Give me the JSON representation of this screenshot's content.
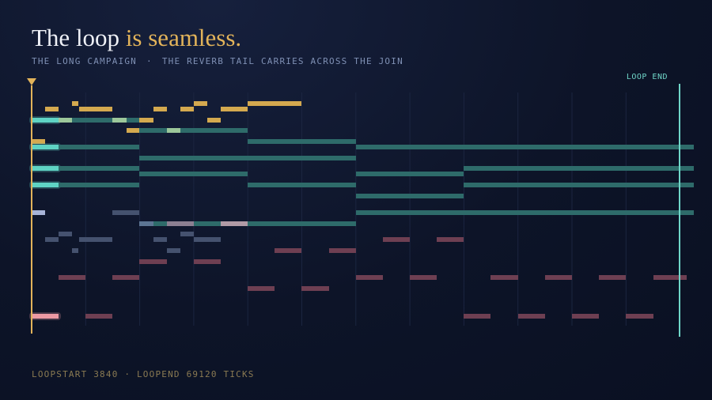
{
  "header": {
    "title_plain": "The loop",
    "title_accent": "is seamless.",
    "subtitle_left": "THE LONG CAMPAIGN",
    "subtitle_separator": "·",
    "subtitle_right": "THE REVERB TAIL CARRIES ACROSS THE JOIN"
  },
  "roll": {
    "loop_end_label": "LOOP END"
  },
  "footer": {
    "text": "LOOPSTART 3840  ·  LOOPEND 69120 TICKS"
  }
}
